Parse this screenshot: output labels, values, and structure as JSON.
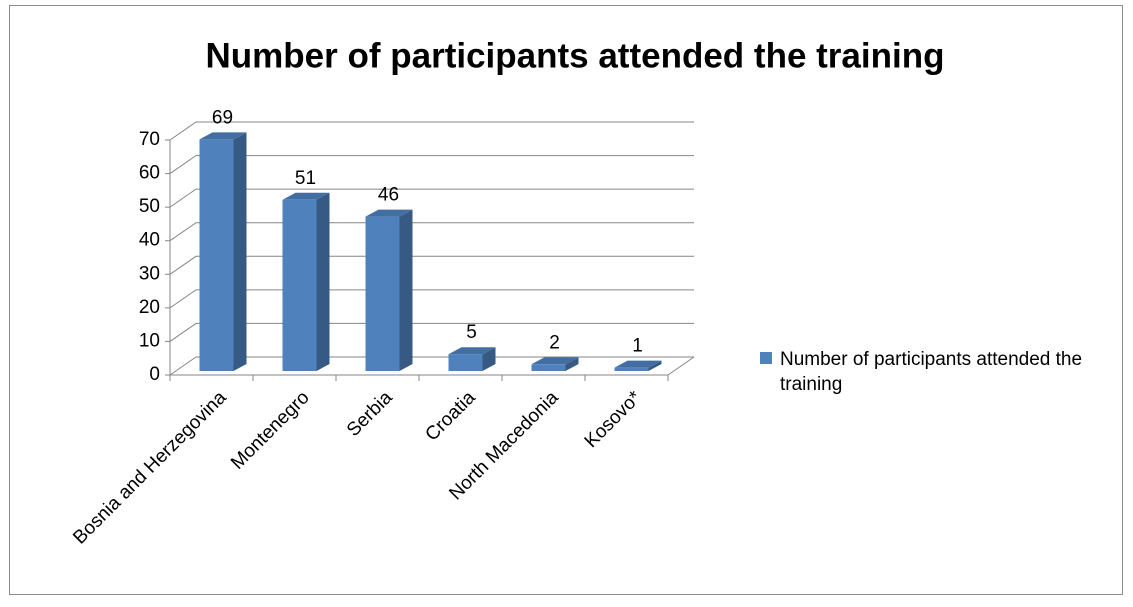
{
  "chart_data": {
    "type": "bar",
    "title": "Number of participants attended the training",
    "categories": [
      "Bosnia and Herzegovina",
      "Montenegro",
      "Serbia",
      "Croatia",
      "North Macedonia",
      "Kosovo*"
    ],
    "series": [
      {
        "name": "Number of participants attended the training",
        "color": "#4f81bd",
        "values": [
          69,
          51,
          46,
          5,
          2,
          1
        ]
      }
    ],
    "ylim": [
      0,
      70
    ],
    "yticks": [
      0,
      10,
      20,
      30,
      40,
      50,
      60,
      70
    ],
    "grid": true,
    "legend": "right"
  }
}
